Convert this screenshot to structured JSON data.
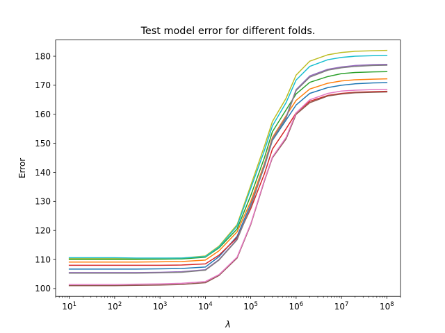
{
  "chart_data": {
    "type": "line",
    "title": "Test model error for different folds.",
    "xlabel": "λ",
    "ylabel": "Error",
    "xscale": "log",
    "xlim": [
      5,
      200000000
    ],
    "ylim": [
      97.3,
      185.6
    ],
    "grid": false,
    "x": [
      10,
      30,
      100,
      300,
      1000,
      3000,
      10000,
      20000,
      50000,
      100000,
      200000,
      300000,
      600000,
      1000000,
      2000000,
      5000000,
      10000000,
      20000000,
      50000000,
      100000000
    ],
    "xticks": [
      {
        "value": 10,
        "base": "10",
        "exp": "1"
      },
      {
        "value": 100,
        "base": "10",
        "exp": "2"
      },
      {
        "value": 1000,
        "base": "10",
        "exp": "3"
      },
      {
        "value": 10000,
        "base": "10",
        "exp": "4"
      },
      {
        "value": 100000,
        "base": "10",
        "exp": "5"
      },
      {
        "value": 1000000,
        "base": "10",
        "exp": "6"
      },
      {
        "value": 10000000,
        "base": "10",
        "exp": "7"
      },
      {
        "value": 100000000,
        "base": "10",
        "exp": "8"
      }
    ],
    "yticks": [
      {
        "value": 100,
        "label": "100"
      },
      {
        "value": 110,
        "label": "110"
      },
      {
        "value": 120,
        "label": "120"
      },
      {
        "value": 130,
        "label": "130"
      },
      {
        "value": 140,
        "label": "140"
      },
      {
        "value": 150,
        "label": "150"
      },
      {
        "value": 160,
        "label": "160"
      },
      {
        "value": 170,
        "label": "170"
      },
      {
        "value": 180,
        "label": "180"
      }
    ],
    "series": [
      {
        "color": "#1f77b4",
        "values": [
          106.7,
          106.7,
          106.7,
          106.7,
          106.8,
          106.9,
          107.4,
          111.0,
          118.0,
          129.0,
          142.0,
          151.0,
          158.0,
          163.2,
          167.2,
          169.2,
          170.0,
          170.5,
          170.8,
          170.9
        ]
      },
      {
        "color": "#ff7f0e",
        "values": [
          109.1,
          109.1,
          109.1,
          109.1,
          109.2,
          109.3,
          109.8,
          113.0,
          119.5,
          130.0,
          143.0,
          152.0,
          159.5,
          164.8,
          168.7,
          170.7,
          171.5,
          171.9,
          172.1,
          172.2
        ]
      },
      {
        "color": "#2ca02c",
        "values": [
          110.0,
          110.0,
          110.0,
          110.0,
          110.1,
          110.2,
          110.8,
          114.0,
          120.5,
          132.0,
          145.0,
          154.0,
          161.5,
          167.0,
          171.0,
          173.0,
          174.0,
          174.4,
          174.6,
          174.7
        ]
      },
      {
        "color": "#d62728",
        "values": [
          108.0,
          108.0,
          108.0,
          108.0,
          108.0,
          108.1,
          108.5,
          111.5,
          117.5,
          127.5,
          139.5,
          148.0,
          155.0,
          160.5,
          164.5,
          166.5,
          167.2,
          167.6,
          167.8,
          167.9
        ]
      },
      {
        "color": "#9467bd",
        "values": [
          105.5,
          105.5,
          105.5,
          105.5,
          105.6,
          105.8,
          106.5,
          110.0,
          117.0,
          128.5,
          142.5,
          151.5,
          159.0,
          168.5,
          173.2,
          175.5,
          176.3,
          176.8,
          177.1,
          177.2
        ]
      },
      {
        "color": "#8c564b",
        "values": [
          101.0,
          101.0,
          101.0,
          101.1,
          101.2,
          101.4,
          102.0,
          104.5,
          110.5,
          122.0,
          137.0,
          145.0,
          151.5,
          160.0,
          164.0,
          166.3,
          167.0,
          167.4,
          167.6,
          167.7
        ]
      },
      {
        "color": "#e377c2",
        "values": [
          101.4,
          101.4,
          101.4,
          101.5,
          101.6,
          101.8,
          102.4,
          104.8,
          110.8,
          122.3,
          137.3,
          145.3,
          152.0,
          160.5,
          165.0,
          167.2,
          168.0,
          168.3,
          168.5,
          168.6
        ]
      },
      {
        "color": "#7f7f7f",
        "values": [
          105.3,
          105.3,
          105.3,
          105.3,
          105.4,
          105.6,
          106.3,
          109.8,
          116.8,
          128.2,
          142.3,
          151.3,
          158.7,
          168.2,
          172.8,
          175.2,
          176.0,
          176.5,
          176.8,
          176.9
        ]
      },
      {
        "color": "#bcbd22",
        "values": [
          110.3,
          110.3,
          110.3,
          110.3,
          110.4,
          110.5,
          111.2,
          114.6,
          122.0,
          135.5,
          149.0,
          157.5,
          165.5,
          173.5,
          178.3,
          180.5,
          181.3,
          181.7,
          181.9,
          182.0
        ]
      },
      {
        "color": "#17becf",
        "values": [
          110.6,
          110.6,
          110.6,
          110.5,
          110.5,
          110.5,
          111.0,
          114.3,
          121.5,
          134.5,
          147.5,
          156.0,
          164.0,
          171.8,
          176.5,
          178.8,
          179.6,
          180.0,
          180.2,
          180.3
        ]
      }
    ]
  }
}
